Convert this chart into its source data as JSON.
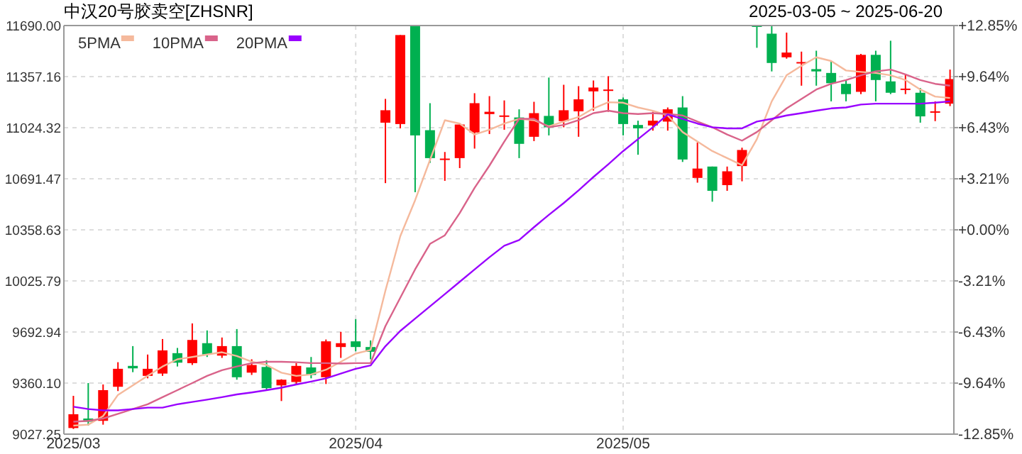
{
  "chart_data": {
    "type": "candlestick",
    "title": "中汉20号胶卖空[ZHSNR]",
    "subtitle": "2025-03-05 ~ 2025-06-20",
    "categories": [
      "2025/03",
      null,
      null,
      null,
      null,
      null,
      null,
      null,
      null,
      null,
      null,
      null,
      null,
      null,
      null,
      null,
      null,
      null,
      null,
      "2025/04",
      null,
      null,
      null,
      null,
      null,
      null,
      null,
      null,
      null,
      null,
      null,
      null,
      null,
      null,
      null,
      null,
      null,
      "2025/05",
      null,
      null,
      null,
      null,
      null,
      null,
      null,
      null,
      null,
      null,
      null,
      null,
      null,
      null,
      null,
      null,
      null,
      null,
      null,
      null,
      null,
      null
    ],
    "ohlc": [
      [
        9067,
        9277,
        9061,
        9157
      ],
      [
        9129,
        9360,
        9083,
        9108
      ],
      [
        9114,
        9351,
        9089,
        9314
      ],
      [
        9336,
        9496,
        9308,
        9453
      ],
      [
        9472,
        9601,
        9431,
        9456
      ],
      [
        9407,
        9546,
        9391,
        9453
      ],
      [
        9422,
        9647,
        9407,
        9573
      ],
      [
        9555,
        9589,
        9468,
        9493
      ],
      [
        9490,
        9749,
        9478,
        9641
      ],
      [
        9620,
        9703,
        9530,
        9546
      ],
      [
        9539,
        9657,
        9524,
        9601
      ],
      [
        9601,
        9712,
        9382,
        9398
      ],
      [
        9428,
        9515,
        9413,
        9478
      ],
      [
        9465,
        9509,
        9311,
        9327
      ],
      [
        9345,
        9385,
        9243,
        9382
      ],
      [
        9367,
        9490,
        9354,
        9472
      ],
      [
        9462,
        9530,
        9391,
        9413
      ],
      [
        9398,
        9644,
        9354,
        9632
      ],
      [
        9595,
        9694,
        9524,
        9620
      ],
      [
        9632,
        9777,
        9567,
        9595
      ],
      [
        9595,
        9638,
        9515,
        9564
      ],
      [
        11057,
        11212,
        10663,
        11138
      ],
      [
        11048,
        11628,
        11020,
        11628
      ],
      [
        11690,
        11690,
        10604,
        10974
      ],
      [
        11008,
        11184,
        10795,
        10826
      ],
      [
        10817,
        10866,
        10678,
        10823
      ],
      [
        10826,
        11051,
        10761,
        11045
      ],
      [
        10993,
        11249,
        10888,
        11184
      ],
      [
        11113,
        11230,
        10983,
        11128
      ],
      [
        11095,
        11202,
        11011,
        11104
      ],
      [
        11091,
        11144,
        10826,
        10919
      ],
      [
        10965,
        11193,
        10937,
        11119
      ],
      [
        11101,
        11351,
        10974,
        11027
      ],
      [
        11067,
        11304,
        11027,
        11138
      ],
      [
        11131,
        11295,
        10965,
        11209
      ],
      [
        11261,
        11332,
        11135,
        11286
      ],
      [
        11264,
        11360,
        11128,
        11273
      ],
      [
        11209,
        11221,
        10974,
        11048
      ],
      [
        11042,
        11070,
        10848,
        11020
      ],
      [
        11039,
        11128,
        11005,
        11070
      ],
      [
        11064,
        11156,
        11005,
        11144
      ],
      [
        11156,
        11230,
        10801,
        10817
      ],
      [
        10697,
        10928,
        10666,
        10758
      ],
      [
        10771,
        10771,
        10542,
        10613
      ],
      [
        10650,
        10771,
        10613,
        10740
      ],
      [
        10774,
        10894,
        10675,
        10879
      ],
      [
        11690,
        11690,
        11545,
        11684
      ],
      [
        11637,
        11690,
        11391,
        11446
      ],
      [
        11483,
        11644,
        11474,
        11514
      ],
      [
        11446,
        11520,
        11298,
        11452
      ],
      [
        11406,
        11526,
        11298,
        11391
      ],
      [
        11381,
        11459,
        11196,
        11314
      ],
      [
        11310,
        11335,
        11196,
        11243
      ],
      [
        11258,
        11505,
        11243,
        11499
      ],
      [
        11499,
        11526,
        11196,
        11335
      ],
      [
        11326,
        11591,
        11243,
        11252
      ],
      [
        11273,
        11372,
        11243,
        11279
      ],
      [
        11252,
        11283,
        11057,
        11098
      ],
      [
        11125,
        11196,
        11067,
        11131
      ],
      [
        11181,
        11403,
        11165,
        11341
      ]
    ],
    "series": [
      {
        "name": "5PMA",
        "type": "line",
        "color": "#f5b99c",
        "values": [
          9083,
          9089,
          9145,
          9283,
          9345,
          9407,
          9468,
          9515,
          9530,
          9546,
          9561,
          9536,
          9499,
          9478,
          9428,
          9407,
          9416,
          9447,
          9499,
          9552,
          9576,
          9962,
          10317,
          10552,
          10814,
          11073,
          11051,
          10980,
          11011,
          11051,
          11082,
          11073,
          11033,
          11064,
          11094,
          11150,
          11190,
          11187,
          11156,
          11135,
          11104,
          10996,
          10934,
          10872,
          10826,
          10780,
          10950,
          11196,
          11366,
          11428,
          11483,
          11459,
          11397,
          11388,
          11381,
          11366,
          11335,
          11273,
          11227,
          11218
        ]
      },
      {
        "name": "10PMA",
        "type": "line",
        "color": "#d9638a",
        "values": [
          9108,
          9114,
          9129,
          9160,
          9191,
          9222,
          9268,
          9314,
          9360,
          9407,
          9444,
          9468,
          9490,
          9499,
          9499,
          9496,
          9490,
          9490,
          9487,
          9490,
          9490,
          9731,
          9916,
          10101,
          10267,
          10323,
          10468,
          10632,
          10777,
          10934,
          11082,
          11082,
          11027,
          11042,
          11073,
          11119,
          11135,
          11119,
          11113,
          11119,
          11113,
          11104,
          11064,
          11027,
          10980,
          10940,
          10996,
          11073,
          11150,
          11212,
          11273,
          11310,
          11335,
          11366,
          11391,
          11403,
          11372,
          11335,
          11310,
          11298
        ]
      },
      {
        "name": "20PMA",
        "type": "line",
        "color": "#9900ff",
        "values": [
          9206,
          9191,
          9182,
          9182,
          9191,
          9200,
          9200,
          9222,
          9237,
          9252,
          9268,
          9286,
          9299,
          9314,
          9330,
          9351,
          9370,
          9391,
          9422,
          9453,
          9475,
          9600,
          9700,
          9780,
          9860,
          9940,
          10020,
          10100,
          10180,
          10255,
          10292,
          10376,
          10456,
          10533,
          10616,
          10703,
          10786,
          10872,
          10950,
          11027,
          11110,
          11082,
          11051,
          11027,
          11020,
          11020,
          11064,
          11082,
          11104,
          11119,
          11135,
          11150,
          11156,
          11175,
          11181,
          11181,
          11181,
          11181,
          11187,
          11196
        ]
      }
    ],
    "ylim": [
      9027.25,
      11690
    ],
    "yticks": [
      {
        "value": 11690,
        "label": "11690.00"
      },
      11357.16,
      11024.32,
      10691.47,
      10358.63,
      10025.79,
      9692.94,
      {
        "value": 9360.1,
        "label": "9360.10"
      },
      9027.25
    ],
    "y2lim": [
      -12.85,
      12.85
    ],
    "y2ticks": [
      {
        "value": 12.85,
        "label": "+12.85%"
      },
      {
        "value": 9.64,
        "label": "+9.64%"
      },
      {
        "value": 6.43,
        "label": "+6.43%"
      },
      {
        "value": 3.21,
        "label": "+3.21%"
      },
      {
        "value": 0,
        "label": "+0.00%"
      },
      {
        "value": -3.21,
        "label": "-3.21%"
      },
      {
        "value": -6.43,
        "label": "-6.43%"
      },
      {
        "value": -9.64,
        "label": "-9.64%"
      },
      {
        "value": -12.85,
        "label": "-12.85%"
      }
    ],
    "grid": true,
    "legend": "top left"
  }
}
